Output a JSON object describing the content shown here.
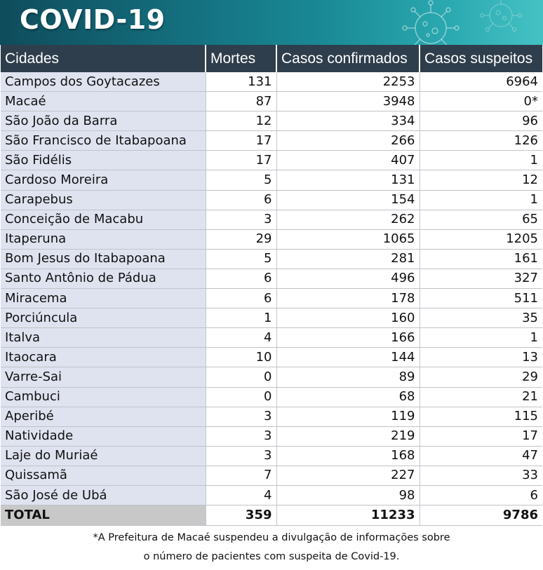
{
  "banner": {
    "title": "COVID-19"
  },
  "table": {
    "headers": [
      "Cidades",
      "Mortes",
      "Casos confirmados",
      "Casos suspeitos"
    ],
    "rows": [
      {
        "city": "Campos dos Goytacazes",
        "deaths": "131",
        "confirmed": "2253",
        "suspected": "6964"
      },
      {
        "city": "Macaé",
        "deaths": "87",
        "confirmed": "3948",
        "suspected": "0*"
      },
      {
        "city": "São João da Barra",
        "deaths": "12",
        "confirmed": "334",
        "suspected": "96"
      },
      {
        "city": "São Francisco de Itabapoana",
        "deaths": "17",
        "confirmed": "266",
        "suspected": "126"
      },
      {
        "city": "São Fidélis",
        "deaths": "17",
        "confirmed": "407",
        "suspected": "1"
      },
      {
        "city": "Cardoso Moreira",
        "deaths": "5",
        "confirmed": "131",
        "suspected": "12"
      },
      {
        "city": "Carapebus",
        "deaths": "6",
        "confirmed": "154",
        "suspected": "1"
      },
      {
        "city": "Conceição de Macabu",
        "deaths": "3",
        "confirmed": "262",
        "suspected": "65"
      },
      {
        "city": "Itaperuna",
        "deaths": "29",
        "confirmed": "1065",
        "suspected": "1205"
      },
      {
        "city": "Bom Jesus do Itabapoana",
        "deaths": "5",
        "confirmed": "281",
        "suspected": "161"
      },
      {
        "city": "Santo Antônio de Pádua",
        "deaths": "6",
        "confirmed": "496",
        "suspected": "327"
      },
      {
        "city": "Miracema",
        "deaths": "6",
        "confirmed": "178",
        "suspected": "511"
      },
      {
        "city": "Porciúncula",
        "deaths": "1",
        "confirmed": "160",
        "suspected": "35"
      },
      {
        "city": "Italva",
        "deaths": "4",
        "confirmed": "166",
        "suspected": "1"
      },
      {
        "city": "Itaocara",
        "deaths": "10",
        "confirmed": "144",
        "suspected": "13"
      },
      {
        "city": "Varre-Sai",
        "deaths": "0",
        "confirmed": "89",
        "suspected": "29"
      },
      {
        "city": "Cambuci",
        "deaths": "0",
        "confirmed": "68",
        "suspected": "21"
      },
      {
        "city": "Aperibé",
        "deaths": "3",
        "confirmed": "119",
        "suspected": "115"
      },
      {
        "city": "Natividade",
        "deaths": "3",
        "confirmed": "219",
        "suspected": "17"
      },
      {
        "city": "Laje do Muriaé",
        "deaths": "3",
        "confirmed": "168",
        "suspected": "47"
      },
      {
        "city": "Quissamã",
        "deaths": "7",
        "confirmed": "227",
        "suspected": "33"
      },
      {
        "city": "São José de Ubá",
        "deaths": "4",
        "confirmed": "98",
        "suspected": "6"
      }
    ],
    "total": {
      "city": "TOTAL",
      "deaths": "359",
      "confirmed": "11233",
      "suspected": "9786"
    }
  },
  "footnote": {
    "line1": "*A Prefeitura de Macaé suspendeu a divulgação de informações sobre",
    "line2": "o número de pacientes com suspeita de Covid-19."
  },
  "colors": {
    "header_bg": "#2f3e4c",
    "city_cell_bg": "#dfe3f0",
    "total_label_bg": "#c8c8c8",
    "banner_gradient": [
      "#0f4c5c",
      "#45c2c4"
    ]
  },
  "icons": [
    "virus-icon"
  ]
}
